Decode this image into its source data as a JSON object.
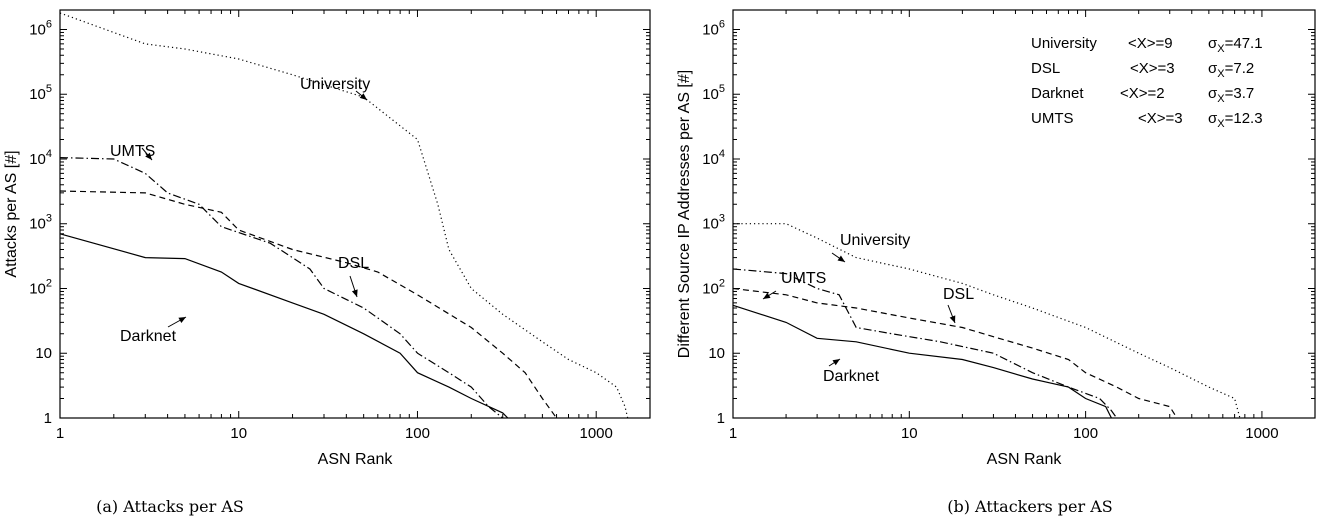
{
  "captions": [
    "(a) Attacks per AS",
    "(b) Attackers per AS"
  ],
  "chart_data": [
    {
      "type": "line",
      "xlabel": "ASN Rank",
      "ylabel": "Attacks per AS [#]",
      "xscale": "log",
      "yscale": "log",
      "xlim": [
        1,
        2000
      ],
      "ylim": [
        1,
        2000000
      ],
      "xticks": [
        "1",
        "10",
        "100",
        "1000"
      ],
      "yticks": [
        "1",
        "10",
        "10^2",
        "10^3",
        "10^4",
        "10^5",
        "10^6"
      ],
      "grid": false,
      "series": [
        {
          "name": "University",
          "style": "dotted",
          "points": [
            [
              1,
              1800000
            ],
            [
              2,
              900000
            ],
            [
              3,
              600000
            ],
            [
              5,
              500000
            ],
            [
              10,
              350000
            ],
            [
              20,
              200000
            ],
            [
              50,
              90000
            ],
            [
              100,
              20000
            ],
            [
              130,
              2000
            ],
            [
              150,
              400
            ],
            [
              200,
              100
            ],
            [
              300,
              40
            ],
            [
              500,
              15
            ],
            [
              700,
              8
            ],
            [
              1000,
              5
            ],
            [
              1300,
              3
            ],
            [
              1450,
              1.5
            ],
            [
              1500,
              1
            ]
          ]
        },
        {
          "name": "UMTS",
          "style": "dashdot",
          "points": [
            [
              1,
              10500
            ],
            [
              2,
              10000
            ],
            [
              3,
              6000
            ],
            [
              4,
              3000
            ],
            [
              6,
              2000
            ],
            [
              8,
              900
            ],
            [
              15,
              500
            ],
            [
              20,
              300
            ],
            [
              25,
              200
            ],
            [
              30,
              100
            ],
            [
              50,
              50
            ],
            [
              80,
              20
            ],
            [
              100,
              10
            ],
            [
              150,
              5
            ],
            [
              200,
              3
            ],
            [
              250,
              1.5
            ],
            [
              300,
              1
            ]
          ]
        },
        {
          "name": "DSL",
          "style": "dashed",
          "points": [
            [
              1,
              3200
            ],
            [
              3,
              3000
            ],
            [
              5,
              2000
            ],
            [
              8,
              1500
            ],
            [
              10,
              800
            ],
            [
              20,
              400
            ],
            [
              40,
              250
            ],
            [
              60,
              180
            ],
            [
              100,
              80
            ],
            [
              200,
              25
            ],
            [
              300,
              10
            ],
            [
              400,
              5
            ],
            [
              500,
              2
            ],
            [
              600,
              1
            ]
          ]
        },
        {
          "name": "Darknet",
          "style": "solid",
          "points": [
            [
              1,
              700
            ],
            [
              3,
              300
            ],
            [
              5,
              290
            ],
            [
              8,
              180
            ],
            [
              10,
              120
            ],
            [
              20,
              60
            ],
            [
              30,
              40
            ],
            [
              50,
              20
            ],
            [
              80,
              10
            ],
            [
              100,
              5
            ],
            [
              150,
              3
            ],
            [
              200,
              2
            ],
            [
              300,
              1.2
            ],
            [
              320,
              1
            ]
          ]
        }
      ],
      "annotations": [
        "University",
        "UMTS",
        "DSL",
        "Darknet"
      ]
    },
    {
      "type": "line",
      "xlabel": "ASN Rank",
      "ylabel": "Different Source IP Addresses per AS [#]",
      "xscale": "log",
      "yscale": "log",
      "xlim": [
        1,
        2000
      ],
      "ylim": [
        1,
        2000000
      ],
      "xticks": [
        "1",
        "10",
        "100",
        "1000"
      ],
      "yticks": [
        "1",
        "10",
        "10^2",
        "10^3",
        "10^4",
        "10^5",
        "10^6"
      ],
      "grid": false,
      "series": [
        {
          "name": "University",
          "style": "dotted",
          "points": [
            [
              1,
              1000
            ],
            [
              2,
              1000
            ],
            [
              3,
              600
            ],
            [
              5,
              300
            ],
            [
              10,
              200
            ],
            [
              20,
              120
            ],
            [
              30,
              80
            ],
            [
              50,
              50
            ],
            [
              100,
              25
            ],
            [
              200,
              10
            ],
            [
              300,
              6
            ],
            [
              500,
              3
            ],
            [
              700,
              2
            ],
            [
              750,
              1
            ]
          ]
        },
        {
          "name": "UMTS",
          "style": "dashdot",
          "points": [
            [
              1,
              200
            ],
            [
              2,
              170
            ],
            [
              3,
              100
            ],
            [
              4,
              80
            ],
            [
              5,
              25
            ],
            [
              8,
              20
            ],
            [
              15,
              15
            ],
            [
              30,
              10
            ],
            [
              50,
              5
            ],
            [
              80,
              3
            ],
            [
              120,
              2
            ],
            [
              140,
              1.3
            ],
            [
              150,
              1
            ]
          ]
        },
        {
          "name": "DSL",
          "style": "dashed",
          "points": [
            [
              1,
              100
            ],
            [
              2,
              80
            ],
            [
              3,
              60
            ],
            [
              5,
              50
            ],
            [
              10,
              35
            ],
            [
              20,
              25
            ],
            [
              30,
              18
            ],
            [
              50,
              12
            ],
            [
              80,
              8
            ],
            [
              100,
              5
            ],
            [
              150,
              3
            ],
            [
              200,
              2
            ],
            [
              300,
              1.5
            ],
            [
              330,
              1
            ]
          ]
        },
        {
          "name": "Darknet",
          "style": "solid",
          "points": [
            [
              1,
              55
            ],
            [
              2,
              30
            ],
            [
              3,
              17
            ],
            [
              5,
              15
            ],
            [
              10,
              10
            ],
            [
              20,
              8
            ],
            [
              30,
              6
            ],
            [
              50,
              4
            ],
            [
              80,
              3
            ],
            [
              100,
              2
            ],
            [
              130,
              1.5
            ],
            [
              140,
              1
            ]
          ]
        }
      ],
      "annotations": [
        "University",
        "UMTS",
        "DSL",
        "Darknet"
      ],
      "stats_table": [
        {
          "name": "University",
          "mean": "<X>=9",
          "sigma": "47.1"
        },
        {
          "name": "DSL",
          "mean": "<X>=3",
          "sigma": "7.2"
        },
        {
          "name": "Darknet",
          "mean": "<X>=2",
          "sigma": "3.7"
        },
        {
          "name": "UMTS",
          "mean": "<X>=3",
          "sigma": "12.3"
        }
      ]
    }
  ]
}
